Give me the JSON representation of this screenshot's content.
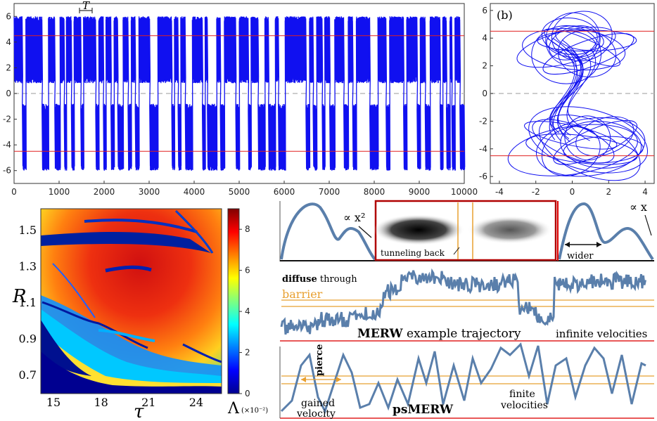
{
  "chart_data": [
    {
      "type": "line",
      "panel": "a",
      "annotation_T": "T",
      "xlim": [
        0,
        10000
      ],
      "ylim": [
        -7,
        7
      ],
      "xticks": [
        0,
        1000,
        2000,
        3000,
        4000,
        5000,
        6000,
        7000,
        8000,
        9000,
        10000
      ],
      "yticks": [
        -6,
        -4,
        -2,
        0,
        2,
        4,
        6
      ],
      "series_color": "#1010f0",
      "ref_lines_red": [
        4.5,
        -4.5
      ],
      "ref_line_dashed": 0,
      "positive_intervals": [
        [
          0,
          180
        ],
        [
          260,
          620
        ],
        [
          760,
          900
        ],
        [
          1020,
          1110
        ],
        [
          1160,
          1270
        ],
        [
          1330,
          1480
        ],
        [
          1540,
          1810
        ],
        [
          1880,
          1980
        ],
        [
          2040,
          2150
        ],
        [
          2220,
          2300
        ],
        [
          2420,
          2530
        ],
        [
          2600,
          2690
        ],
        [
          2770,
          3010
        ],
        [
          3190,
          3500
        ],
        [
          3560,
          3640
        ],
        [
          3700,
          3800
        ],
        [
          3960,
          4180
        ],
        [
          4240,
          4290
        ],
        [
          4500,
          4580
        ],
        [
          4670,
          4920
        ],
        [
          5000,
          5200
        ],
        [
          5260,
          5420
        ],
        [
          5570,
          5650
        ],
        [
          5800,
          5870
        ],
        [
          6020,
          6480
        ],
        [
          6560,
          6640
        ],
        [
          6720,
          6840
        ],
        [
          6900,
          7010
        ],
        [
          7120,
          7320
        ],
        [
          7420,
          7520
        ],
        [
          7600,
          7900
        ],
        [
          8080,
          8260
        ],
        [
          8340,
          8650
        ],
        [
          8720,
          8950
        ],
        [
          9020,
          9130
        ],
        [
          9240,
          9460
        ],
        [
          9520,
          9600
        ],
        [
          9680,
          9720
        ],
        [
          9790,
          9900
        ]
      ]
    },
    {
      "type": "line",
      "panel": "b",
      "label": "(b)",
      "xlim": [
        -4.5,
        4.5
      ],
      "ylim": [
        -6.5,
        6.5
      ],
      "xticks": [
        -4,
        -2,
        0,
        2,
        4
      ],
      "yticks": [
        -6,
        -4,
        -2,
        0,
        2,
        4,
        6
      ],
      "series_color": "#1010f0"
    },
    {
      "type": "heatmap",
      "panel": "c",
      "xlabel": "τ",
      "ylabel": "R",
      "xticks": [
        15,
        18,
        21,
        24
      ],
      "yticks": [
        0.7,
        0.9,
        1.1,
        1.3,
        1.5
      ],
      "yticklabels": [
        "0.7",
        "0.9",
        "1.1",
        "1.3",
        "1.5"
      ],
      "colorbar_ticks": [
        0,
        2,
        4,
        6,
        8
      ],
      "colorbar_label": "Λ",
      "colorbar_unit": "(×10⁻²)"
    }
  ],
  "merw": {
    "potential_left_label": "∝ x²",
    "potential_right_label": "∝ x",
    "tunneling_label": "tunneling back",
    "wider_label": "wider",
    "diffuse_bold": "diffuse",
    "diffuse_rest": " through",
    "barrier_label": "barrier",
    "merw_bold": "MERW",
    "merw_rest": " example trajectory",
    "infinite_label": "infinite velocities",
    "pierce_label": "pierce",
    "gained_label_1": "gained",
    "gained_label_2": "velocity",
    "psmerw_label": "psMERW",
    "finite_label_1": "finite",
    "finite_label_2": "velocities"
  },
  "colors": {
    "trajectory": "#5a7fab",
    "barrier": "#e8a030",
    "boundary": "#e00000",
    "signal": "#1010f0"
  }
}
